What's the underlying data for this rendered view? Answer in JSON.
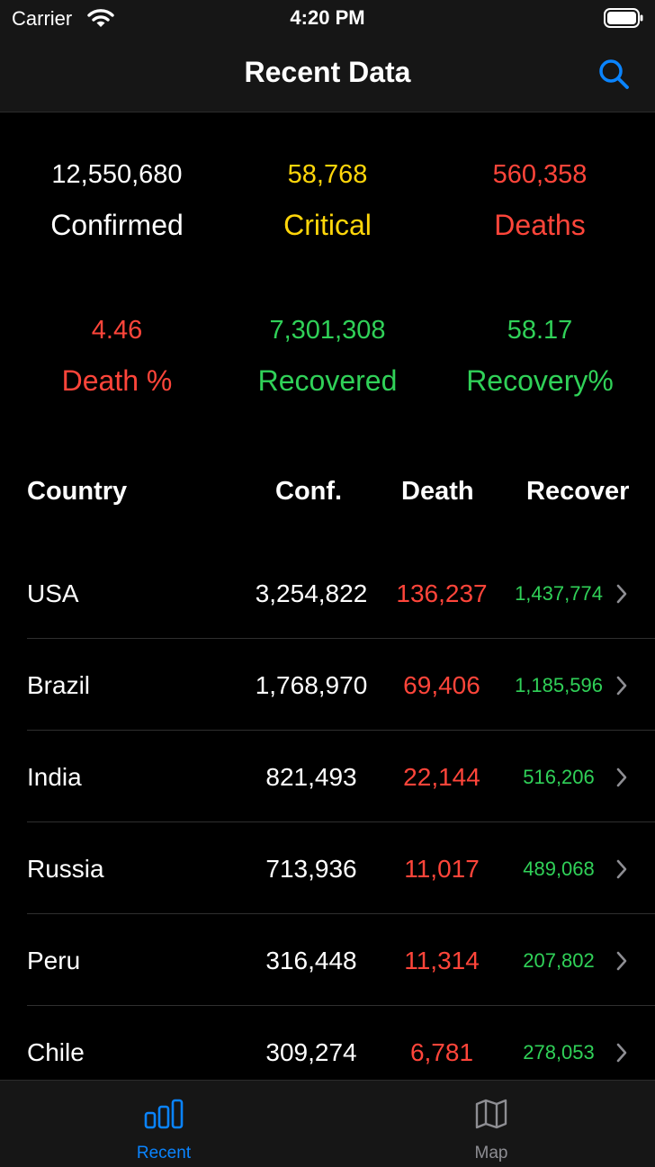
{
  "status": {
    "carrier": "Carrier",
    "time": "4:20 PM"
  },
  "nav": {
    "title": "Recent Data",
    "search_icon": "magnifying-glass-icon"
  },
  "stats": {
    "confirmed": {
      "value": "12,550,680",
      "label": "Confirmed"
    },
    "critical": {
      "value": "58,768",
      "label": "Critical"
    },
    "deaths": {
      "value": "560,358",
      "label": "Deaths"
    },
    "death_pct": {
      "value": "4.46",
      "label": "Death %"
    },
    "recovered": {
      "value": "7,301,308",
      "label": "Recovered"
    },
    "recovery_pct": {
      "value": "58.17",
      "label": "Recovery%"
    }
  },
  "table": {
    "headers": {
      "country": "Country",
      "conf": "Conf.",
      "death": "Death",
      "recover": "Recover"
    },
    "rows": [
      {
        "country": "USA",
        "conf": "3,254,822",
        "death": "136,237",
        "recover": "1,437,774"
      },
      {
        "country": "Brazil",
        "conf": "1,768,970",
        "death": "69,406",
        "recover": "1,185,596"
      },
      {
        "country": "India",
        "conf": "821,493",
        "death": "22,144",
        "recover": "516,206"
      },
      {
        "country": "Russia",
        "conf": "713,936",
        "death": "11,017",
        "recover": "489,068"
      },
      {
        "country": "Peru",
        "conf": "316,448",
        "death": "11,314",
        "recover": "207,802"
      },
      {
        "country": "Chile",
        "conf": "309,274",
        "death": "6,781",
        "recover": "278,053"
      }
    ]
  },
  "tabs": [
    {
      "label": "Recent",
      "icon": "bar-chart-icon",
      "selected": true
    },
    {
      "label": "Map",
      "icon": "map-icon",
      "selected": false
    }
  ],
  "colors": {
    "accent": "#0a84ff",
    "critical": "#ffd60a",
    "death": "#ff453a",
    "recover": "#30d158",
    "inactive_tab": "#8e8e93"
  }
}
